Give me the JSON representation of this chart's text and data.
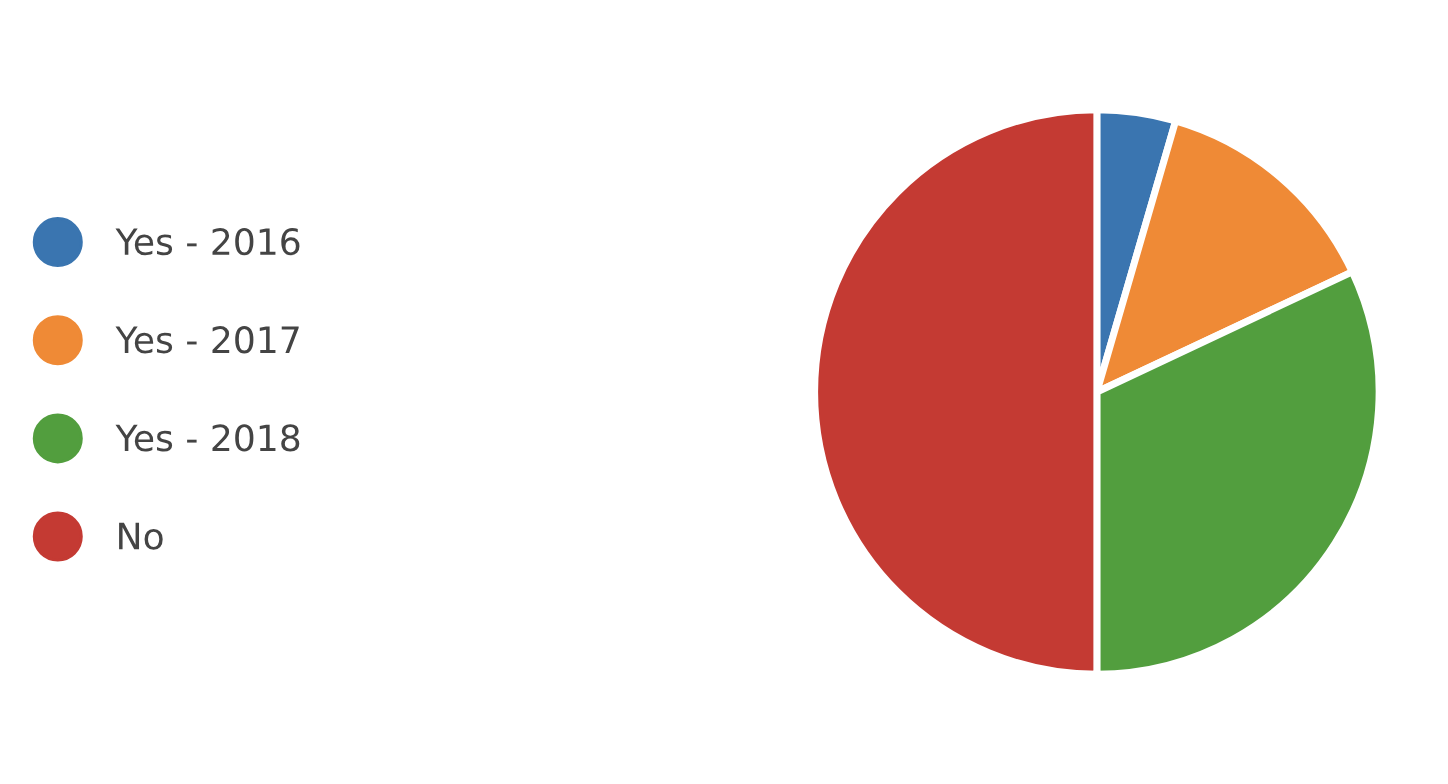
{
  "chart_data": {
    "type": "pie",
    "categories": [
      "Yes - 2016",
      "Yes - 2017",
      "Yes - 2018",
      "No"
    ],
    "values": [
      4.5,
      13.5,
      32,
      50
    ],
    "colors": [
      "#3a75b0",
      "#ef8a36",
      "#529e3e",
      "#c43a33"
    ],
    "legend": "left"
  }
}
